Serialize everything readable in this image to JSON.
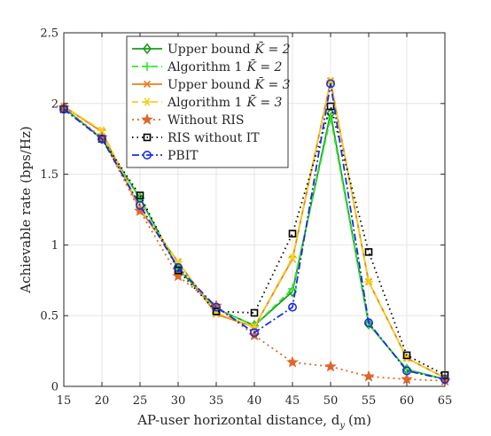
{
  "chart_data": {
    "type": "line",
    "xlabel": "AP-user horizontal distance, d",
    "xlabel_sub": "y",
    "xlabel_unit": "(m)",
    "ylabel": "Achievable rate (bps/Hz)",
    "xlim": [
      15,
      65
    ],
    "ylim": [
      0,
      2.5
    ],
    "xticks": [
      15,
      20,
      25,
      30,
      35,
      40,
      45,
      50,
      55,
      60,
      65
    ],
    "yticks": [
      0,
      0.5,
      1,
      1.5,
      2,
      2.5
    ],
    "ytick_labels": [
      "0",
      "0.5",
      "1",
      "1.5",
      "2",
      "2.5"
    ],
    "grid": true,
    "legend_position": "top-center",
    "series": [
      {
        "name": "Upper bound K̄ = 2",
        "legend_main": "Upper bound",
        "legend_math": "K̄ = 2",
        "color": "#1f9a1f",
        "dash": "",
        "marker": "diamond",
        "x": [
          15,
          20,
          25,
          30,
          35,
          40,
          45,
          50,
          55,
          60,
          65
        ],
        "y": [
          1.97,
          1.75,
          1.33,
          0.83,
          0.55,
          0.43,
          0.67,
          1.93,
          0.44,
          0.12,
          0.05
        ]
      },
      {
        "name": "Algorithm 1 K̄ = 2",
        "legend_main": "Algorithm 1",
        "legend_math": "K̄ = 2",
        "color": "#33e633",
        "dash": "7,4",
        "marker": "plus",
        "x": [
          15,
          20,
          25,
          30,
          35,
          40,
          45,
          50,
          55,
          60,
          65
        ],
        "y": [
          1.97,
          1.75,
          1.33,
          0.83,
          0.55,
          0.43,
          0.69,
          1.9,
          0.44,
          0.12,
          0.05
        ]
      },
      {
        "name": "Upper bound K̄ = 3",
        "legend_main": "Upper bound",
        "legend_math": "K̄ = 3",
        "color": "#e8801a",
        "dash": "",
        "marker": "cross",
        "x": [
          15,
          20,
          25,
          30,
          35,
          40,
          45,
          50,
          55,
          60,
          65
        ],
        "y": [
          1.98,
          1.8,
          1.25,
          0.88,
          0.51,
          0.42,
          0.9,
          2.16,
          0.74,
          0.2,
          0.06
        ]
      },
      {
        "name": "Algorithm 1 K̄ = 3",
        "legend_main": "Algorithm 1",
        "legend_math": "K̄ = 3",
        "color": "#f2d21a",
        "dash": "7,4",
        "marker": "star6",
        "x": [
          15,
          20,
          25,
          30,
          35,
          40,
          45,
          50,
          55,
          60,
          65
        ],
        "y": [
          1.98,
          1.81,
          1.26,
          0.88,
          0.52,
          0.42,
          0.91,
          2.16,
          0.74,
          0.2,
          0.06
        ]
      },
      {
        "name": "Without RIS",
        "legend_main": "Without RIS",
        "legend_math": "",
        "color": "#e0662a",
        "dash": "2,4",
        "marker": "star5",
        "marker_fill": "#e0662a",
        "x": [
          15,
          20,
          25,
          30,
          35,
          40,
          45,
          50,
          55,
          60,
          65
        ],
        "y": [
          1.97,
          1.76,
          1.24,
          0.78,
          0.57,
          0.36,
          0.17,
          0.14,
          0.07,
          0.05,
          0.04
        ]
      },
      {
        "name": "RIS without IT",
        "legend_main": "RIS without IT",
        "legend_math": "",
        "color": "#000000",
        "dash": "1.5,4",
        "marker": "square",
        "x": [
          15,
          20,
          25,
          30,
          35,
          40,
          45,
          50,
          55,
          60,
          65
        ],
        "y": [
          1.96,
          1.75,
          1.35,
          0.82,
          0.53,
          0.52,
          1.08,
          1.98,
          0.95,
          0.22,
          0.08
        ]
      },
      {
        "name": "PBIT",
        "legend_main": "PBIT",
        "legend_math": "",
        "color": "#1a2ee0",
        "dash": "8,3,2,3",
        "marker": "circle",
        "x": [
          15,
          20,
          25,
          30,
          35,
          40,
          45,
          50,
          55,
          60,
          65
        ],
        "y": [
          1.96,
          1.75,
          1.28,
          0.84,
          0.56,
          0.38,
          0.56,
          2.14,
          0.45,
          0.11,
          0.05
        ]
      }
    ]
  }
}
